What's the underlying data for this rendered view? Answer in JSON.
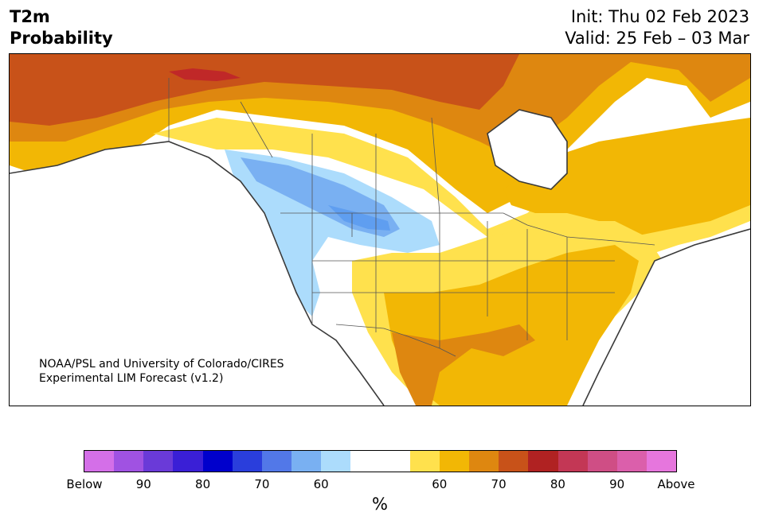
{
  "header": {
    "title_line1": "T2m",
    "title_line2": "Probability",
    "init": "Init: Thu 02 Feb 2023",
    "valid": "Valid: 25 Feb – 03 Mar"
  },
  "credit": {
    "line1": "NOAA/PSL and University of Colorado/CIRES",
    "line2": "Experimental LIM Forecast (v1.2)"
  },
  "colorbar": {
    "colors": [
      "#d46fe8",
      "#a052e2",
      "#6a3ad8",
      "#3a1fd6",
      "#0000cc",
      "#2a3edc",
      "#5278e8",
      "#79b0f2",
      "#acdcfc",
      "#ffffff",
      "#ffffff",
      "#ffe14d",
      "#f2b705",
      "#de8710",
      "#c85219",
      "#b02222",
      "#c33755",
      "#cf4e85",
      "#db5fab",
      "#e676dd"
    ],
    "tick_labels": [
      "Below",
      "90",
      "80",
      "70",
      "60",
      "60",
      "70",
      "80",
      "90",
      "Above"
    ],
    "unit": "%"
  },
  "map": {
    "colors": {
      "land_blank": "#ffffff",
      "prob_60_below": "#acdcfc",
      "prob_70_below": "#79b0f2",
      "prob_80_below": "#5f9ef0",
      "prob_60_above": "#ffe14d",
      "prob_70_above": "#f2b705",
      "prob_80_above": "#de8710",
      "prob_90_above": "#c85219",
      "prob_above_max": "#c02828",
      "coastline": "#3a3a3a",
      "borders": "#555555"
    }
  }
}
